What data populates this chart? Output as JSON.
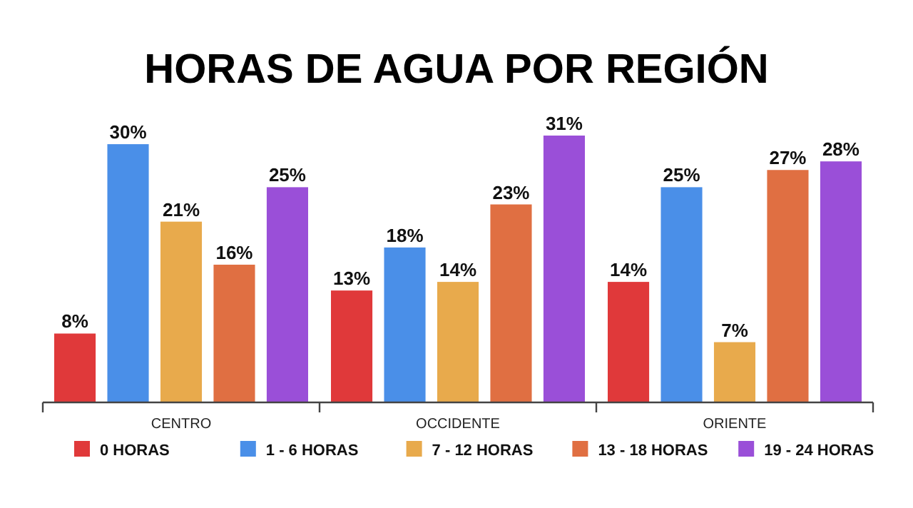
{
  "chart_data": {
    "type": "bar",
    "title": "HORAS DE AGUA POR REGIÓN",
    "categories": [
      "CENTRO",
      "OCCIDENTE",
      "ORIENTE"
    ],
    "series": [
      {
        "name": "0 HORAS",
        "color": "#e0393a",
        "values": [
          8,
          13,
          14
        ],
        "value_labels": [
          "8%",
          "13%",
          "14%"
        ]
      },
      {
        "name": "1 - 6 HORAS",
        "color": "#4a8fe8",
        "values": [
          30,
          18,
          25
        ],
        "value_labels": [
          "30%",
          "18%",
          "25%"
        ]
      },
      {
        "name": "7 - 12 HORAS",
        "color": "#e8aa4c",
        "values": [
          21,
          14,
          7
        ],
        "value_labels": [
          "21%",
          "14%",
          "7%"
        ]
      },
      {
        "name": "13 - 18 HORAS",
        "color": "#e06f42",
        "values": [
          16,
          23,
          27
        ],
        "value_labels": [
          "16%",
          "23%",
          "27%"
        ]
      },
      {
        "name": "19 - 24 HORAS",
        "color": "#9a4fd8",
        "values": [
          25,
          31,
          28
        ],
        "value_labels": [
          "25%",
          "31%",
          "28%"
        ]
      }
    ],
    "legend": "bottom",
    "grid": false
  }
}
